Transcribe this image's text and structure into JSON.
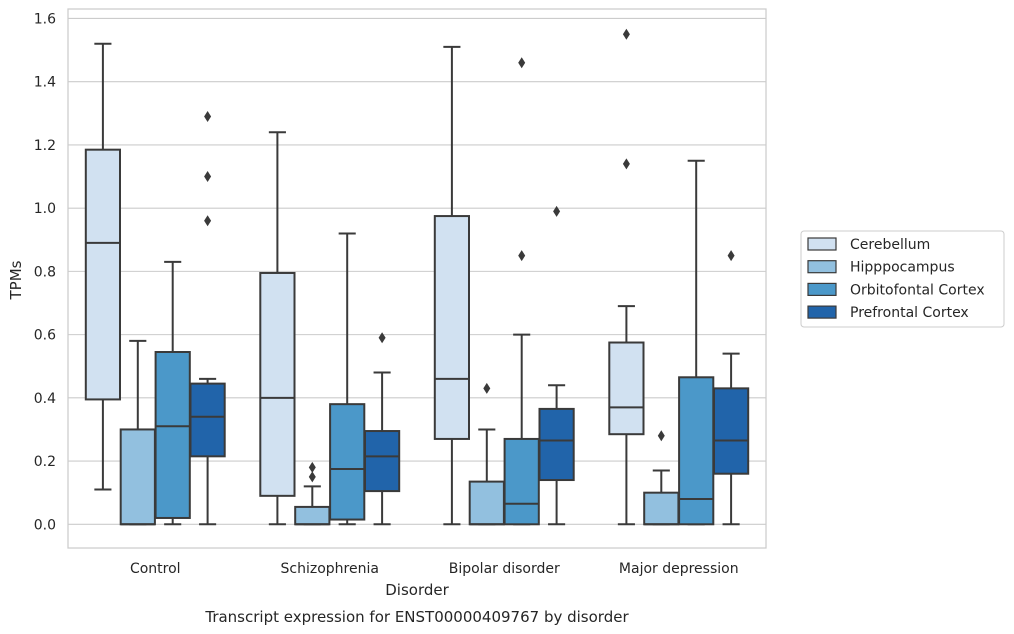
{
  "chart_data": {
    "type": "box",
    "xlabel": "Disorder",
    "ylabel": "TPMs",
    "caption": "Transcript expression for ENST00000409767 by disorder",
    "ylim": [
      -0.075,
      1.63
    ],
    "yticks": [
      "0.0",
      "0.2",
      "0.4",
      "0.6",
      "0.8",
      "1.0",
      "1.2",
      "1.4",
      "1.6"
    ],
    "grid": true,
    "legend_position": "right",
    "categories": [
      "Control",
      "Schizophrenia",
      "Bipolar disorder",
      "Major depression"
    ],
    "series": [
      {
        "name": "Cerebellum",
        "color": "#d1e1f1",
        "boxes": [
          {
            "whisker_low": 0.11,
            "q1": 0.395,
            "median": 0.89,
            "q3": 1.185,
            "whisker_high": 1.52,
            "outliers": []
          },
          {
            "whisker_low": 0.0,
            "q1": 0.09,
            "median": 0.4,
            "q3": 0.795,
            "whisker_high": 1.24,
            "outliers": []
          },
          {
            "whisker_low": 0.0,
            "q1": 0.27,
            "median": 0.46,
            "q3": 0.975,
            "whisker_high": 1.51,
            "outliers": []
          },
          {
            "whisker_low": 0.0,
            "q1": 0.285,
            "median": 0.37,
            "q3": 0.575,
            "whisker_high": 0.69,
            "outliers": [
              1.14,
              1.55
            ]
          }
        ]
      },
      {
        "name": "Hipppocampus",
        "color": "#92c0df",
        "boxes": [
          {
            "whisker_low": 0.0,
            "q1": 0.0,
            "median": 0.0,
            "q3": 0.3,
            "whisker_high": 0.58,
            "outliers": []
          },
          {
            "whisker_low": 0.0,
            "q1": 0.0,
            "median": 0.0,
            "q3": 0.055,
            "whisker_high": 0.12,
            "outliers": [
              0.15,
              0.18
            ]
          },
          {
            "whisker_low": 0.0,
            "q1": 0.0,
            "median": 0.0,
            "q3": 0.135,
            "whisker_high": 0.3,
            "outliers": [
              0.43
            ]
          },
          {
            "whisker_low": 0.0,
            "q1": 0.0,
            "median": 0.0,
            "q3": 0.1,
            "whisker_high": 0.17,
            "outliers": [
              0.28
            ]
          }
        ]
      },
      {
        "name": "Orbitofontal Cortex",
        "color": "#4b98c9",
        "boxes": [
          {
            "whisker_low": 0.0,
            "q1": 0.02,
            "median": 0.31,
            "q3": 0.545,
            "whisker_high": 0.83,
            "outliers": []
          },
          {
            "whisker_low": 0.0,
            "q1": 0.015,
            "median": 0.175,
            "q3": 0.38,
            "whisker_high": 0.92,
            "outliers": []
          },
          {
            "whisker_low": 0.0,
            "q1": 0.0,
            "median": 0.065,
            "q3": 0.27,
            "whisker_high": 0.6,
            "outliers": [
              0.85,
              1.46
            ]
          },
          {
            "whisker_low": 0.0,
            "q1": 0.0,
            "median": 0.08,
            "q3": 0.465,
            "whisker_high": 1.15,
            "outliers": []
          }
        ]
      },
      {
        "name": "Prefrontal Cortex",
        "color": "#2164aa",
        "boxes": [
          {
            "whisker_low": 0.0,
            "q1": 0.215,
            "median": 0.34,
            "q3": 0.445,
            "whisker_high": 0.46,
            "outliers": [
              0.96,
              1.1,
              1.29
            ]
          },
          {
            "whisker_low": 0.0,
            "q1": 0.105,
            "median": 0.215,
            "q3": 0.295,
            "whisker_high": 0.48,
            "outliers": [
              0.59
            ]
          },
          {
            "whisker_low": 0.0,
            "q1": 0.14,
            "median": 0.265,
            "q3": 0.365,
            "whisker_high": 0.44,
            "outliers": [
              0.99
            ]
          },
          {
            "whisker_low": 0.0,
            "q1": 0.16,
            "median": 0.265,
            "q3": 0.43,
            "whisker_high": 0.54,
            "outliers": [
              0.85
            ]
          }
        ]
      }
    ]
  }
}
